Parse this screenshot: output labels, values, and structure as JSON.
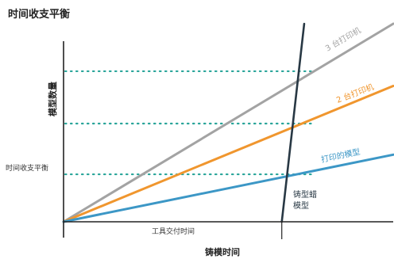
{
  "chart_data": {
    "type": "line",
    "title": "时间收支平衡",
    "xlabel": "铸模时间",
    "ylabel": "模型数量",
    "y_marker_label": "时间收支平衡",
    "x_marker_label": "工具交付时间",
    "grid": false,
    "series": [
      {
        "name": "3 台打印机",
        "color": "#a3a3a3",
        "points": [
          [
            0,
            0
          ],
          [
            10,
            6.05
          ]
        ]
      },
      {
        "name": "2 台打印机",
        "color": "#f0962e",
        "points": [
          [
            0,
            0
          ],
          [
            10,
            4.15
          ]
        ]
      },
      {
        "name": "打印的模型",
        "color": "#3c97c6",
        "points": [
          [
            0,
            0
          ],
          [
            10,
            2.05
          ]
        ]
      },
      {
        "name": "铸型蜡模型",
        "color": "#283844",
        "points": [
          [
            6.62,
            0
          ],
          [
            7.3,
            6.05
          ]
        ]
      }
    ],
    "break_even_levels": [
      4.6,
      3.0,
      1.45
    ],
    "tool_delivery_x": 6.62,
    "xlim": [
      0,
      10
    ],
    "ylim": [
      0,
      6.05
    ]
  }
}
